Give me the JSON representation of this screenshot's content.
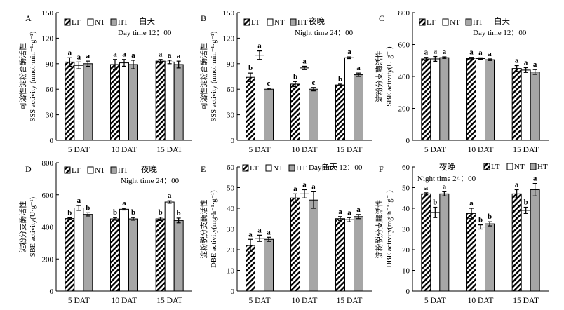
{
  "legend": [
    "LT",
    "NT",
    "HT"
  ],
  "chart_data": [
    {
      "type": "bar",
      "panel": "A",
      "title_cn": "白天",
      "title_en": "Day time 12：00",
      "ylabel_cn": "可溶性淀粉合酶活性",
      "ylabel_en": "SSS activity (nmol·min⁻¹·g⁻¹)",
      "ylim": [
        0,
        150
      ],
      "yticks": [
        0,
        30,
        60,
        90,
        120,
        150
      ],
      "categories": [
        "5 DAT",
        "10 DAT",
        "15 DAT"
      ],
      "series": [
        {
          "name": "LT",
          "values": [
            92,
            89,
            93
          ],
          "errors": [
            5,
            6,
            2
          ],
          "letters": [
            "a",
            "a",
            "a"
          ]
        },
        {
          "name": "NT",
          "values": [
            88,
            91,
            92
          ],
          "errors": [
            4,
            4,
            2
          ],
          "letters": [
            "a",
            "a",
            "a"
          ]
        },
        {
          "name": "HT",
          "values": [
            90,
            89,
            89
          ],
          "errors": [
            3,
            5,
            4
          ],
          "letters": [
            "a",
            "a",
            "a"
          ]
        }
      ]
    },
    {
      "type": "bar",
      "panel": "B",
      "title_cn": "夜晚",
      "title_en": "Night time 24：00",
      "ylabel_cn": "可溶性淀粉合酶活性",
      "ylabel_en": "SSS activity (nmol·min⁻¹·g⁻¹)",
      "ylim": [
        0,
        150
      ],
      "yticks": [
        0,
        30,
        60,
        90,
        120,
        150
      ],
      "categories": [
        "5 DAT",
        "10 DAT",
        "15 DAT"
      ],
      "series": [
        {
          "name": "LT",
          "values": [
            74,
            66,
            65
          ],
          "errors": [
            5,
            3,
            1
          ],
          "letters": [
            "b",
            "b",
            "b"
          ]
        },
        {
          "name": "NT",
          "values": [
            100,
            85,
            97
          ],
          "errors": [
            5,
            2,
            1
          ],
          "letters": [
            "a",
            "a",
            "a"
          ]
        },
        {
          "name": "HT",
          "values": [
            60,
            60,
            77
          ],
          "errors": [
            1,
            2,
            2
          ],
          "letters": [
            "c",
            "c",
            "a"
          ]
        }
      ]
    },
    {
      "type": "bar",
      "panel": "C",
      "title_cn": "白天",
      "title_en": "Day time 12：00",
      "ylabel_cn": "淀粉分支酶活性",
      "ylabel_en": "SBE activity(U·g⁻¹)",
      "ylim": [
        0,
        800
      ],
      "yticks": [
        0,
        200,
        400,
        600,
        800
      ],
      "categories": [
        "5 DAT",
        "10 DAT",
        "15 DAT"
      ],
      "series": [
        {
          "name": "LT",
          "values": [
            510,
            515,
            450
          ],
          "errors": [
            10,
            5,
            18
          ],
          "letters": [
            "a",
            "a",
            "a"
          ]
        },
        {
          "name": "NT",
          "values": [
            510,
            512,
            440
          ],
          "errors": [
            15,
            5,
            15
          ],
          "letters": [
            "a",
            "a",
            "a"
          ]
        },
        {
          "name": "HT",
          "values": [
            518,
            505,
            428
          ],
          "errors": [
            5,
            5,
            15
          ],
          "letters": [
            "a",
            "a",
            "a"
          ]
        }
      ]
    },
    {
      "type": "bar",
      "panel": "D",
      "title_cn": "夜晚",
      "title_en": "Night time 24：00",
      "ylabel_cn": "淀粉分支酶活性",
      "ylabel_en": "SBE activity(U·g⁻¹)",
      "ylim": [
        0,
        800
      ],
      "yticks": [
        0,
        200,
        400,
        600,
        800
      ],
      "categories": [
        "5 DAT",
        "10 DAT",
        "15 DAT"
      ],
      "series": [
        {
          "name": "LT",
          "values": [
            452,
            450,
            450
          ],
          "errors": [
            5,
            8,
            10
          ],
          "letters": [
            "b",
            "b",
            "b"
          ]
        },
        {
          "name": "NT",
          "values": [
            518,
            510,
            555
          ],
          "errors": [
            15,
            5,
            8
          ],
          "letters": [
            "a",
            "a",
            "a"
          ]
        },
        {
          "name": "HT",
          "values": [
            478,
            450,
            440
          ],
          "errors": [
            10,
            8,
            15
          ],
          "letters": [
            "b",
            "b",
            "b"
          ]
        }
      ]
    },
    {
      "type": "bar",
      "panel": "E",
      "title_cn": "白天",
      "title_en": "Day time 12：00",
      "ylabel_cn": "淀粉脱分支酶活性",
      "ylabel_en": "DBE activity(mg·h⁻¹·g⁻¹)",
      "ylim": [
        0,
        60
      ],
      "yticks": [
        0,
        10,
        20,
        30,
        40,
        50,
        60
      ],
      "categories": [
        "5 DAT",
        "10 DAT",
        "15 DAT"
      ],
      "series": [
        {
          "name": "LT",
          "values": [
            22,
            45,
            35
          ],
          "errors": [
            3,
            2,
            1
          ],
          "letters": [
            "a",
            "a",
            "a"
          ]
        },
        {
          "name": "NT",
          "values": [
            25.5,
            47,
            34.5
          ],
          "errors": [
            1.5,
            2,
            1
          ],
          "letters": [
            "a",
            "a",
            "a"
          ]
        },
        {
          "name": "HT",
          "values": [
            25,
            44,
            36
          ],
          "errors": [
            1,
            4,
            1
          ],
          "letters": [
            "a",
            "a",
            "a"
          ]
        }
      ]
    },
    {
      "type": "bar",
      "panel": "F",
      "title_cn": "夜晚",
      "title_en": "Night time 24：00",
      "ylabel_cn": "淀粉脱分支酶活性",
      "ylabel_en": "DBE activity(mg·h⁻¹·g⁻¹)",
      "ylim": [
        0,
        60
      ],
      "yticks": [
        0,
        10,
        20,
        30,
        40,
        50,
        60
      ],
      "categories": [
        "5 DAT",
        "10 DAT",
        "15 DAT"
      ],
      "series": [
        {
          "name": "LT",
          "values": [
            47,
            37.5,
            47
          ],
          "errors": [
            0.5,
            2.5,
            2
          ],
          "letters": [
            "a",
            "a",
            "a"
          ]
        },
        {
          "name": "NT",
          "values": [
            38,
            31,
            39
          ],
          "errors": [
            2.5,
            1,
            1.5
          ],
          "letters": [
            "b",
            "b",
            "b"
          ]
        },
        {
          "name": "HT",
          "values": [
            47,
            32.5,
            49
          ],
          "errors": [
            1,
            1,
            3
          ],
          "letters": [
            "a",
            "b",
            "a"
          ]
        }
      ]
    }
  ]
}
